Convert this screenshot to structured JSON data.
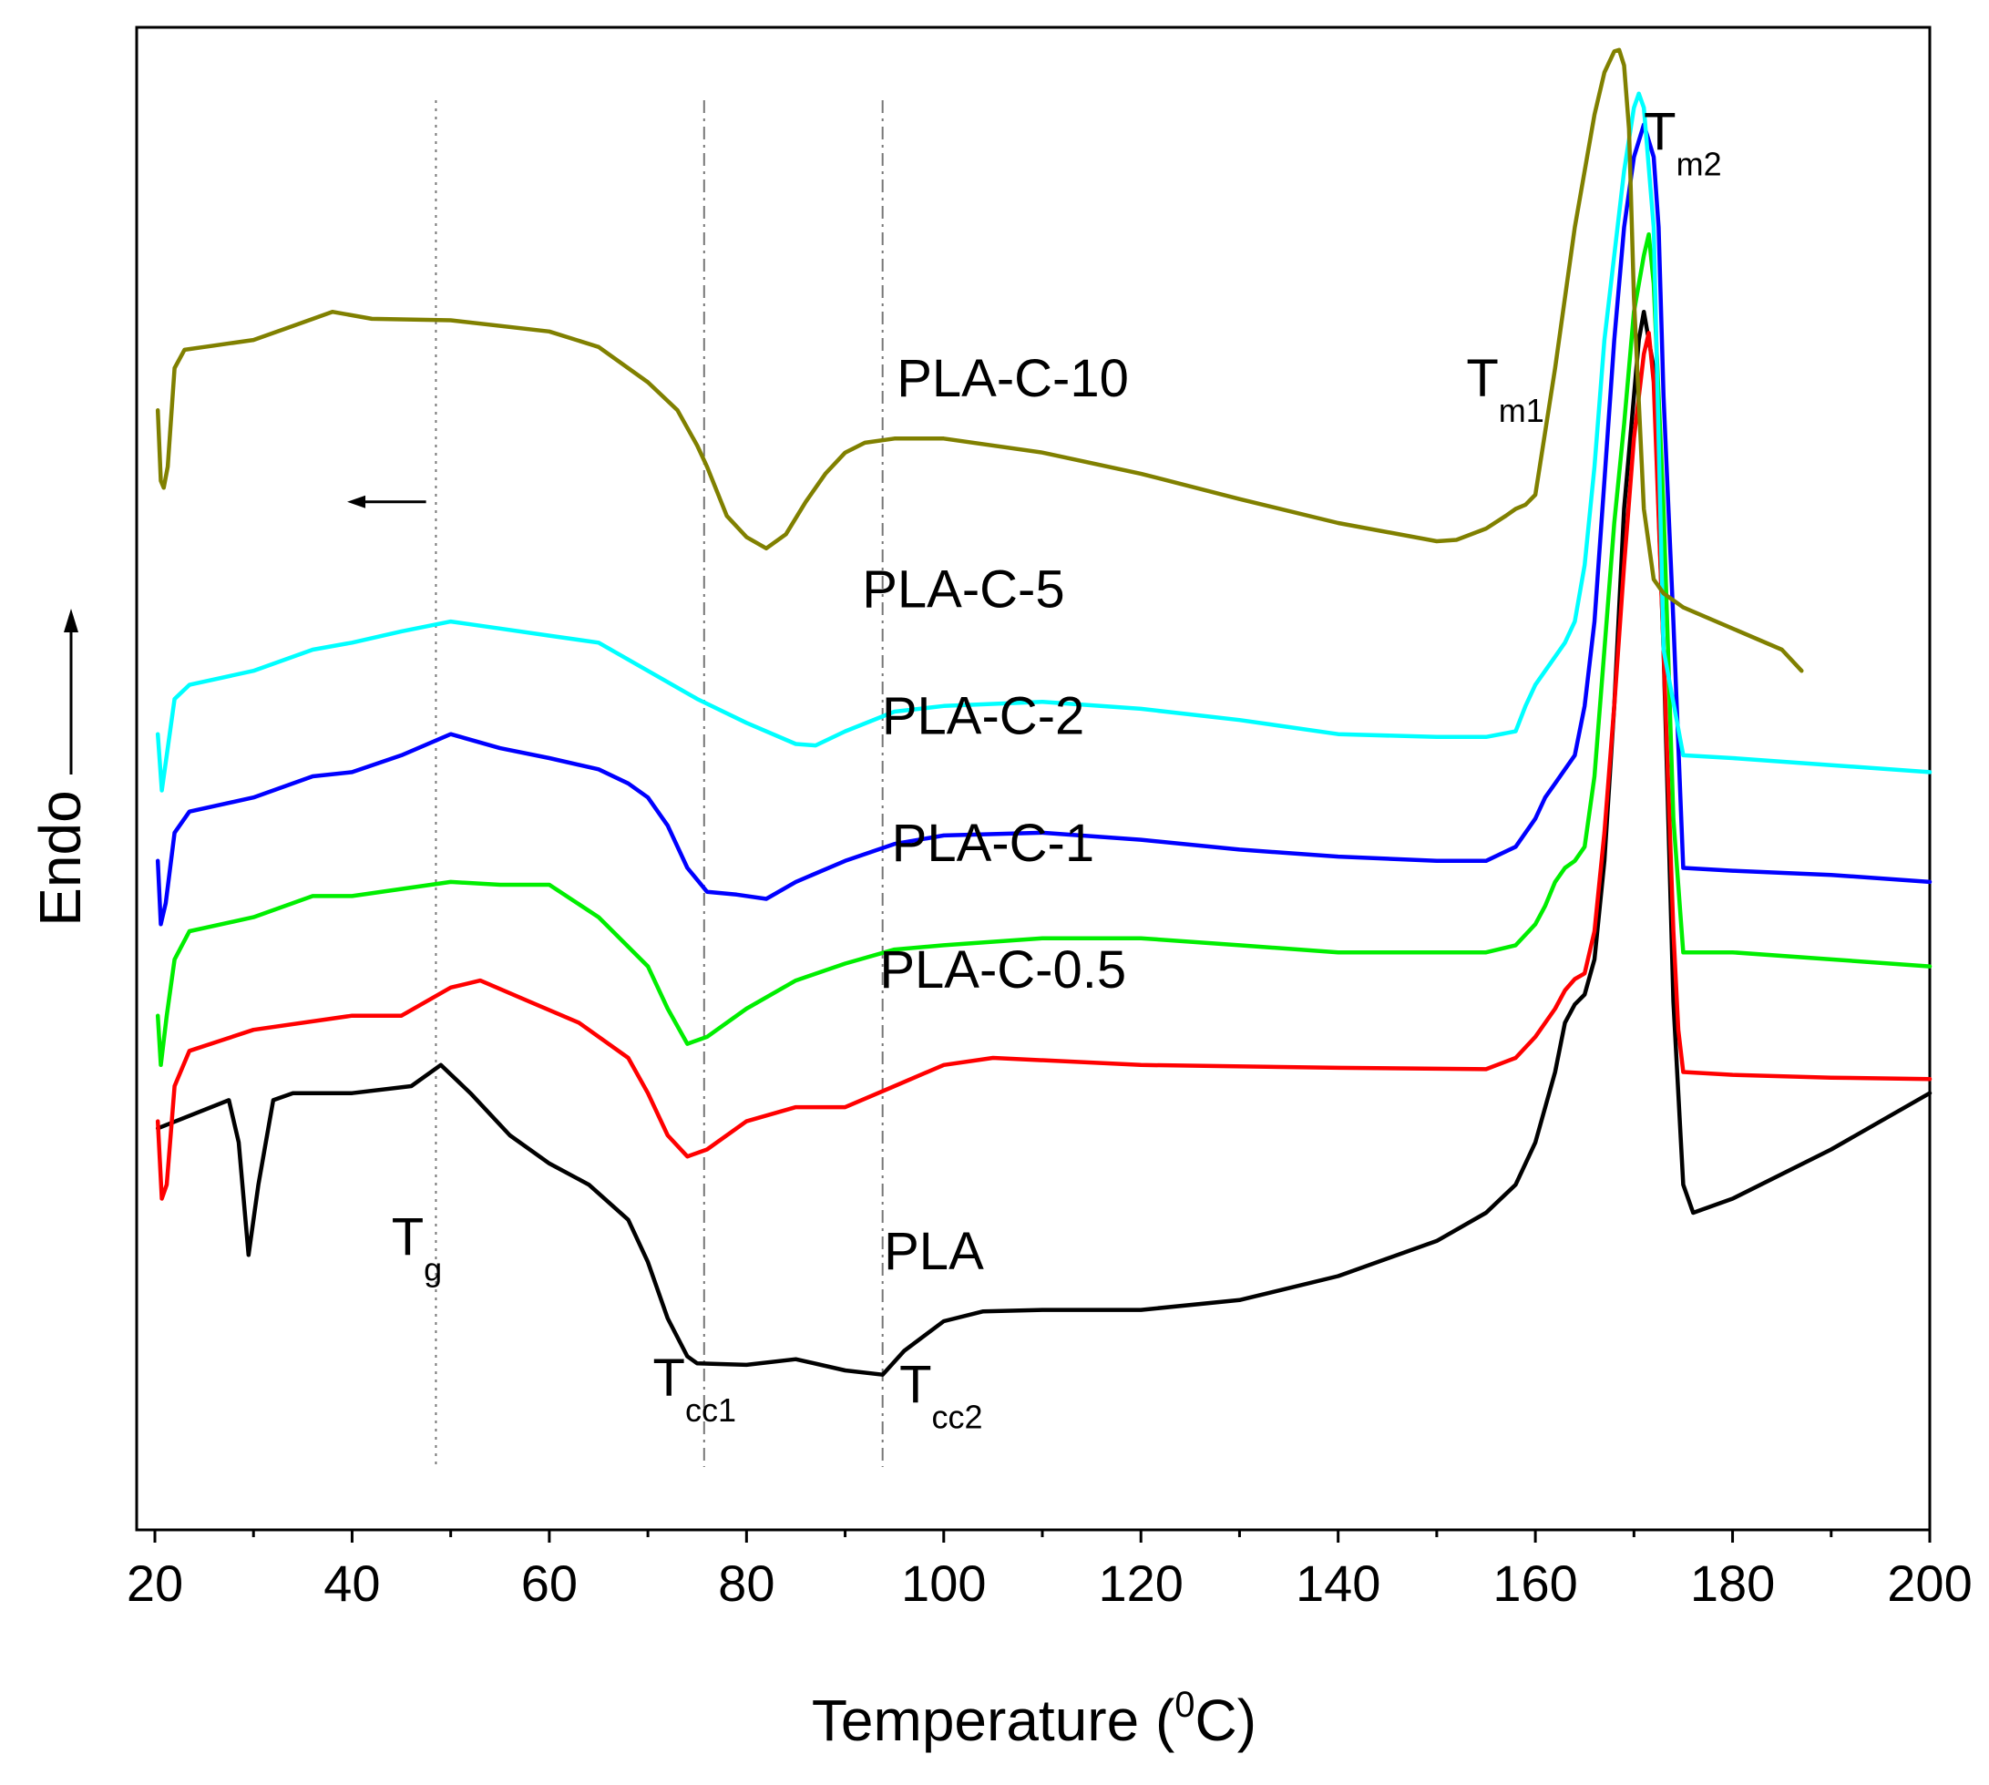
{
  "chart_data": {
    "type": "line",
    "title": "",
    "xlabel": "Temperature (°C)",
    "xlabel_parts": {
      "main": "Temperature (",
      "sup": "0",
      "end": "C)"
    },
    "ylabel": "Endo",
    "xlim": [
      20,
      200
    ],
    "ylim": [
      0,
      100
    ],
    "x_ticks": [
      20,
      40,
      60,
      80,
      100,
      120,
      140,
      160,
      180,
      200
    ],
    "x_tick_labels": [
      "20",
      "40",
      "60",
      "80",
      "100",
      "120",
      "140",
      "160",
      "180",
      "200"
    ],
    "y_ticks_shown": false,
    "grid": false,
    "vertical_reference_lines": [
      {
        "x": 48.5,
        "style": "dotted",
        "label": "Tg"
      },
      {
        "x": 75.7,
        "style": "dash-dot",
        "label": "Tcc1"
      },
      {
        "x": 93.8,
        "style": "dash-dot",
        "label": "Tcc2"
      }
    ],
    "annotations": [
      {
        "main": "T",
        "sub": "g",
        "x": 44,
        "y": 17
      },
      {
        "main": "T",
        "sub": "cc1",
        "x": 70.5,
        "y": 7
      },
      {
        "main": "T",
        "sub": "cc2",
        "x": 95.5,
        "y": 6.5
      },
      {
        "main": "T",
        "sub": "m1",
        "x": 153,
        "y": 78
      },
      {
        "main": "T",
        "sub": "m2",
        "x": 171,
        "y": 95.5
      }
    ],
    "heating_arrow": {
      "from_x": 47.5,
      "to_x": 39.5,
      "y": 70.5
    },
    "endo_arrow": "up",
    "series": [
      {
        "name": "PLA",
        "color": "#000000",
        "label_pos": [
          99,
          16
        ],
        "x": [
          20.3,
          27.5,
          28.5,
          29.5,
          30.5,
          32,
          34,
          40,
          46,
          49,
          52,
          56,
          60,
          64,
          68,
          70,
          72,
          74,
          75,
          80,
          85,
          90,
          93.8,
          96,
          100,
          104,
          110,
          120,
          130,
          140,
          150,
          155,
          158,
          160,
          162,
          163,
          164,
          165,
          166,
          167,
          168,
          169,
          170,
          170.5,
          171,
          172,
          173,
          174,
          175,
          176,
          180,
          190,
          200
        ],
        "y": [
          26,
          28,
          25,
          17,
          22,
          28,
          28.5,
          28.5,
          29,
          30.5,
          28.5,
          25.5,
          23.5,
          22,
          19.5,
          16.5,
          12.5,
          9.8,
          9.3,
          9.2,
          9.6,
          8.8,
          8.5,
          10.2,
          12.3,
          13,
          13.1,
          13.1,
          13.8,
          15.5,
          18,
          20,
          22,
          25,
          30,
          33.5,
          34.8,
          35.5,
          38,
          45,
          56,
          70,
          78,
          82,
          84,
          80,
          60,
          35,
          22,
          20,
          21,
          24.5,
          28.5
        ]
      },
      {
        "name": "PLA-C-0.5",
        "color": "#ff0000",
        "label_pos": [
          106,
          36
        ],
        "x": [
          20.3,
          20.7,
          21.2,
          22,
          23.5,
          30,
          40,
          45,
          50,
          53,
          58,
          63,
          68,
          70,
          72,
          74,
          76,
          80,
          85,
          90,
          95,
          100,
          105,
          120,
          140,
          155,
          158,
          160,
          162,
          163,
          164,
          165,
          166,
          167,
          168,
          169,
          170,
          171,
          171.5,
          172,
          173,
          174,
          174.5,
          175,
          180,
          190,
          200
        ],
        "y": [
          26.5,
          21,
          22,
          29,
          31.5,
          33,
          34,
          34,
          36,
          36.5,
          35,
          33.5,
          31,
          28.5,
          25.5,
          24,
          24.5,
          26.5,
          27.5,
          27.5,
          29,
          30.5,
          31,
          30.5,
          30.3,
          30.2,
          31,
          32.5,
          34.5,
          35.8,
          36.6,
          37,
          40,
          47,
          56,
          66,
          75,
          81,
          82.5,
          79,
          60,
          40,
          33,
          30,
          29.8,
          29.6,
          29.5
        ]
      },
      {
        "name": "PLA-C-1",
        "color": "#00ee00",
        "label_pos": [
          105,
          45
        ],
        "x": [
          20.3,
          20.6,
          21.2,
          22,
          23.5,
          30,
          36,
          40,
          45,
          50,
          55,
          60,
          65,
          70,
          72,
          74,
          76,
          80,
          85,
          90,
          95,
          100,
          110,
          120,
          130,
          140,
          150,
          155,
          158,
          160,
          161,
          162,
          163,
          164,
          165,
          166,
          167,
          168,
          169,
          170,
          171,
          171.5,
          172,
          173,
          174,
          175,
          180,
          190,
          200
        ],
        "y": [
          34,
          30.5,
          34,
          38,
          40,
          41,
          42.5,
          42.5,
          43,
          43.5,
          43.3,
          43.3,
          41,
          37.5,
          34.5,
          32,
          32.5,
          34.5,
          36.5,
          37.7,
          38.7,
          39,
          39.5,
          39.5,
          39,
          38.5,
          38.5,
          38.5,
          39,
          40.5,
          41.8,
          43.5,
          44.5,
          45,
          46,
          51,
          60,
          69,
          76,
          84,
          88,
          89.5,
          86,
          70,
          48,
          38.5,
          38.5,
          38,
          37.5
        ]
      },
      {
        "name": "PLA-C-2",
        "color": "#0000ff",
        "label_pos": [
          104,
          54
        ],
        "x": [
          20.3,
          20.6,
          21.1,
          22,
          23.5,
          30,
          36,
          40,
          45,
          50,
          55,
          60,
          65,
          68,
          70,
          72,
          74,
          76,
          79,
          82,
          85,
          90,
          95,
          100,
          110,
          120,
          130,
          140,
          150,
          155,
          158,
          160,
          161,
          162,
          163,
          164,
          165,
          166,
          167,
          168,
          169,
          170,
          171,
          172,
          172.5,
          173,
          174,
          175,
          180,
          190,
          200
        ],
        "y": [
          45,
          40.5,
          42,
          47,
          48.5,
          49.5,
          51,
          51.3,
          52.5,
          54,
          53,
          52.3,
          51.5,
          50.5,
          49.5,
          47.5,
          44.5,
          42.8,
          42.6,
          42.3,
          43.5,
          45,
          46.2,
          46.8,
          47,
          46.5,
          45.8,
          45.3,
          45,
          45,
          46,
          48,
          49.5,
          50.5,
          51.5,
          52.5,
          56,
          62,
          72,
          82,
          90,
          95,
          97.3,
          95,
          90,
          78,
          62,
          44.5,
          44.3,
          44,
          43.5
        ]
      },
      {
        "name": "PLA-C-5",
        "color": "#00ffff",
        "label_pos": [
          102,
          63
        ],
        "x": [
          20.3,
          20.7,
          21.2,
          22,
          23.5,
          30,
          36,
          40,
          45,
          50,
          55,
          60,
          65,
          70,
          75,
          80,
          85,
          87,
          90,
          95,
          100,
          110,
          120,
          130,
          140,
          150,
          155,
          158,
          159,
          160,
          161,
          162,
          163,
          164,
          165,
          166,
          167,
          168,
          169,
          170,
          170.5,
          171,
          172,
          173,
          175,
          180,
          190,
          200
        ],
        "y": [
          54,
          50,
          52.5,
          56.5,
          57.5,
          58.5,
          60,
          60.5,
          61.3,
          62,
          61.5,
          61,
          60.5,
          58.5,
          56.5,
          54.8,
          53.3,
          53.2,
          54.2,
          55.6,
          56,
          56.3,
          55.8,
          55,
          54,
          53.8,
          53.8,
          54.2,
          56,
          57.5,
          58.5,
          59.5,
          60.5,
          62,
          66,
          73,
          82,
          88,
          94,
          98.5,
          99.5,
          98.5,
          90,
          60,
          52.5,
          52.3,
          51.8,
          51.3
        ]
      },
      {
        "name": "PLA-C-10",
        "color": "#808000",
        "label_pos": [
          107,
          78
        ],
        "x": [
          20.3,
          20.6,
          20.9,
          21.3,
          22,
          23,
          25,
          30,
          34,
          38,
          42,
          50,
          60,
          65,
          70,
          73,
          75,
          76,
          78,
          80,
          82,
          84,
          86,
          88,
          90,
          92,
          95,
          100,
          110,
          120,
          130,
          140,
          150,
          152,
          155,
          157,
          158,
          159,
          160,
          162,
          164,
          166,
          167,
          168,
          168.5,
          169,
          169.5,
          170,
          171,
          172,
          173,
          175,
          180,
          185,
          187
        ],
        "y": [
          77,
          72,
          71.5,
          73,
          80,
          81.3,
          81.5,
          82,
          83,
          84,
          83.5,
          83.4,
          82.6,
          81.5,
          79,
          77,
          74.5,
          73,
          69.5,
          68,
          67.2,
          68.2,
          70.5,
          72.5,
          74,
          74.7,
          75,
          75,
          74,
          72.5,
          70.7,
          69,
          67.7,
          67.8,
          68.6,
          69.5,
          70,
          70.3,
          71,
          80,
          90,
          98,
          101,
          102.5,
          102.6,
          101.5,
          97,
          85,
          70,
          65,
          64,
          63,
          61.5,
          60,
          58.5
        ]
      }
    ]
  }
}
